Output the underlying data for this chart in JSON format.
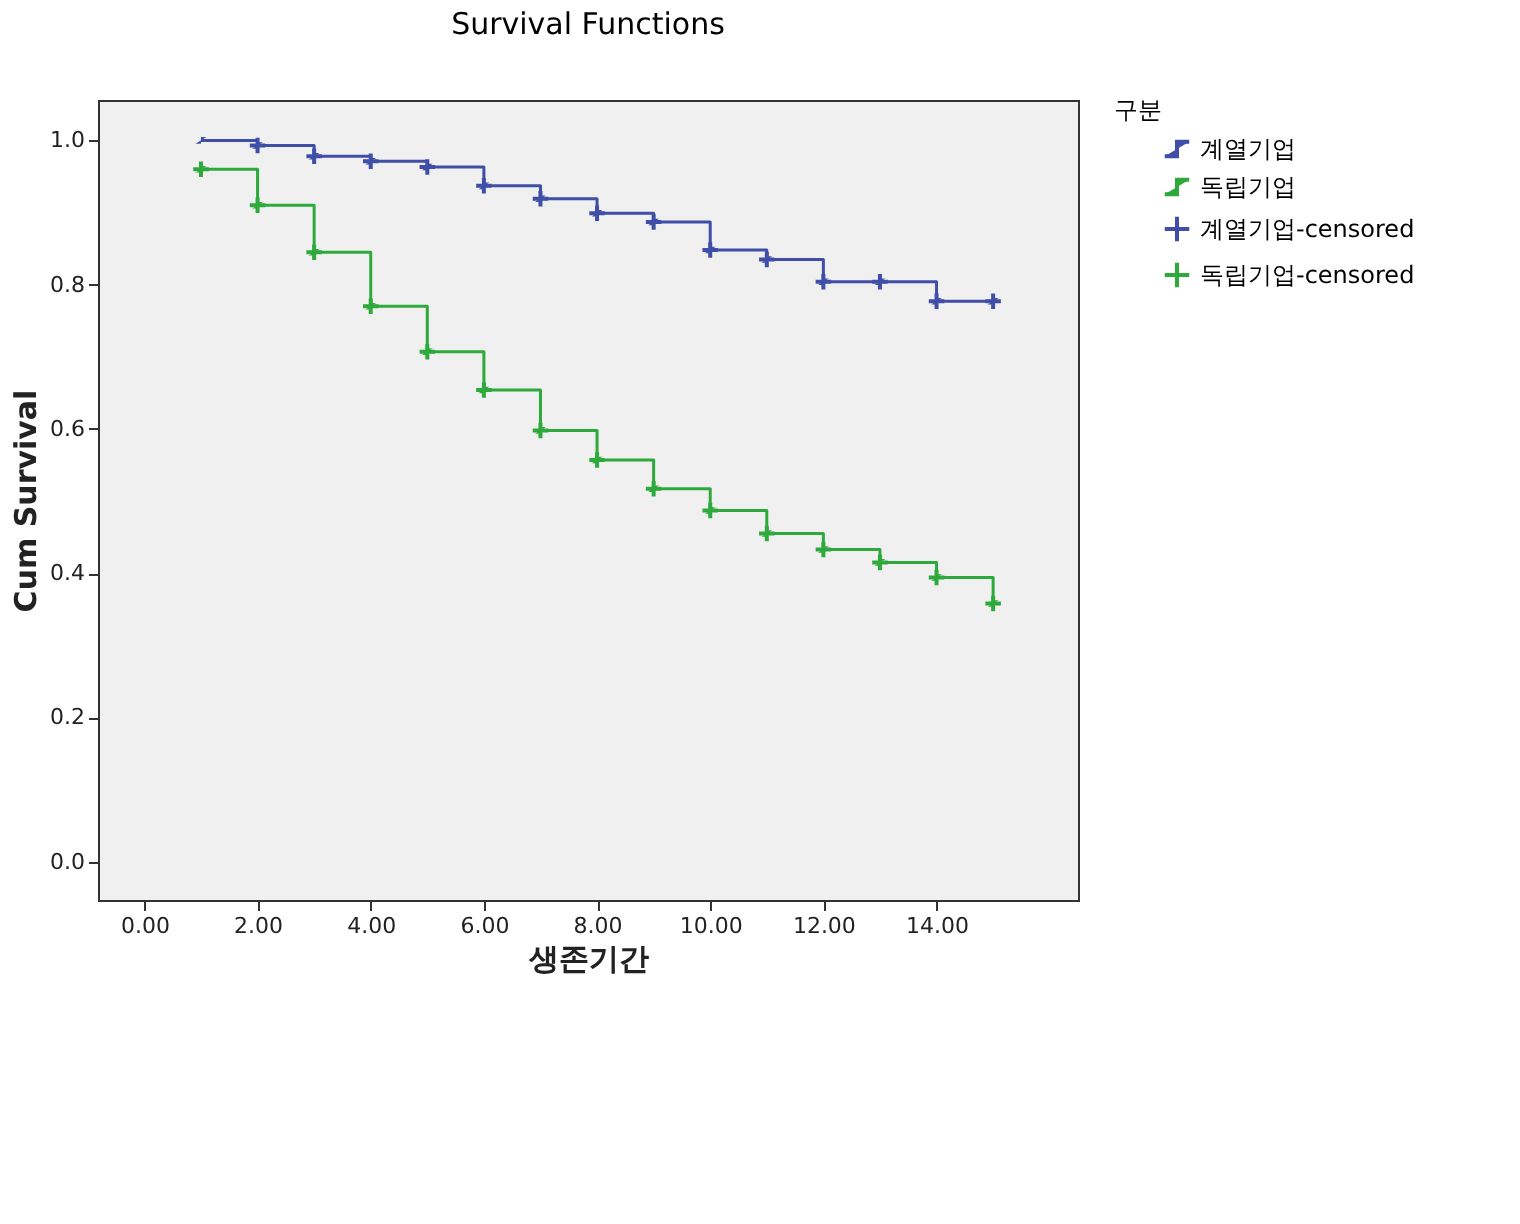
{
  "chart_data": {
    "type": "step",
    "title": "Survival Functions",
    "xlabel": "생존기간",
    "ylabel": "Cum Survival",
    "legend_title": "구분",
    "x": [
      1,
      2,
      3,
      4,
      5,
      6,
      7,
      8,
      9,
      10,
      11,
      12,
      13,
      14,
      15
    ],
    "series": [
      {
        "name": "계열기업",
        "color": "#3f4fa8",
        "values": [
          1.0,
          0.993,
          0.978,
          0.971,
          0.963,
          0.937,
          0.919,
          0.899,
          0.887,
          0.848,
          0.835,
          0.804,
          0.804,
          0.777,
          0.777
        ]
      },
      {
        "name": "독립기업",
        "color": "#2eaa3c",
        "values": [
          0.96,
          0.91,
          0.845,
          0.77,
          0.707,
          0.654,
          0.598,
          0.557,
          0.517,
          0.487,
          0.455,
          0.433,
          0.415,
          0.394,
          0.358
        ]
      },
      {
        "name": "계열기업-censored",
        "type": "scatter",
        "marker": "cross",
        "color": "#3f4fa8",
        "values": [
          null,
          0.993,
          0.978,
          0.971,
          0.963,
          0.937,
          0.919,
          0.899,
          0.887,
          0.848,
          0.835,
          0.804,
          0.804,
          0.777,
          0.777
        ]
      },
      {
        "name": "독립기업-censored",
        "type": "scatter",
        "marker": "cross",
        "color": "#2eaa3c",
        "values": [
          0.96,
          0.91,
          0.845,
          0.77,
          0.707,
          0.654,
          0.598,
          0.557,
          0.517,
          0.487,
          0.455,
          0.433,
          0.415,
          0.394,
          0.358
        ]
      }
    ],
    "xlim": [
      -0.82,
      16.5
    ],
    "ylim": [
      -0.053,
      1.056
    ],
    "xticks": [
      {
        "value": 0,
        "label": "0.00"
      },
      {
        "value": 2,
        "label": "2.00"
      },
      {
        "value": 4,
        "label": "4.00"
      },
      {
        "value": 6,
        "label": "6.00"
      },
      {
        "value": 8,
        "label": "8.00"
      },
      {
        "value": 10,
        "label": "10.00"
      },
      {
        "value": 12,
        "label": "12.00"
      },
      {
        "value": 14,
        "label": "14.00"
      }
    ],
    "yticks": [
      {
        "value": 0,
        "label": "0.0"
      },
      {
        "value": 0.2,
        "label": "0.2"
      },
      {
        "value": 0.4,
        "label": "0.4"
      },
      {
        "value": 0.6,
        "label": "0.6"
      },
      {
        "value": 0.8,
        "label": "0.8"
      },
      {
        "value": 1,
        "label": "1.0"
      }
    ],
    "grid": false,
    "legend": "right"
  }
}
